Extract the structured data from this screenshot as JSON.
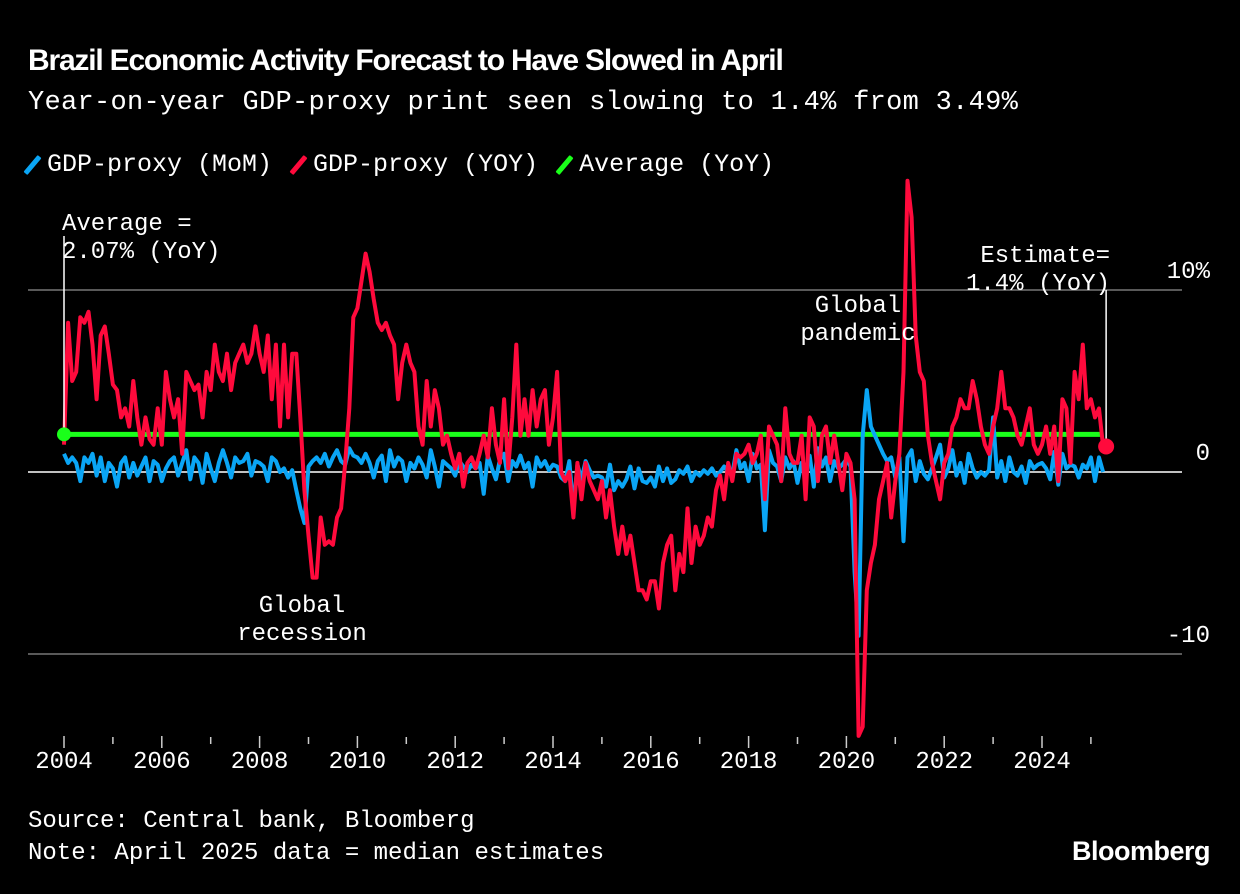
{
  "header": {
    "title": "Brazil Economic Activity Forecast to Have Slowed in April",
    "subtitle": "Year-on-year GDP-proxy print seen slowing to 1.4% from 3.49%"
  },
  "footer": {
    "source": "Source: Central bank, Bloomberg",
    "note": "Note: April 2025 data = median estimates",
    "brand": "Bloomberg"
  },
  "colors": {
    "mom": "#0aa5f5",
    "yoy": "#ff0a3c",
    "average": "#1aff1a",
    "grid": "#777777",
    "zero": "#ffffff"
  },
  "chart_data": {
    "type": "line",
    "title": "Brazil Economic Activity Forecast to Have Slowed in April",
    "subtitle": "Year-on-year GDP-proxy print seen slowing to 1.4% from 3.49%",
    "x_start": "2004-01",
    "x_end": "2025-04",
    "frequency": "monthly",
    "x_ticks": [
      "2004",
      "2006",
      "2008",
      "2010",
      "2012",
      "2014",
      "2016",
      "2018",
      "2020",
      "2022",
      "2024"
    ],
    "y_ticks": [
      {
        "value": 10,
        "label": "10%"
      },
      {
        "value": 0,
        "label": "0"
      },
      {
        "value": -10,
        "label": "-10"
      }
    ],
    "ylim": [
      -15,
      16
    ],
    "grid": true,
    "legend_placement": "top-left",
    "series": [
      {
        "name": "GDP-proxy (MoM)",
        "color": "#0aa5f5",
        "values": [
          1.0,
          0.5,
          0.8,
          0.5,
          -0.5,
          0.8,
          0.5,
          1.0,
          -0.2,
          0.8,
          -0.5,
          0.5,
          0.2,
          -0.8,
          0.5,
          0.8,
          -0.3,
          0.5,
          -0.2,
          0.3,
          0.8,
          -0.5,
          0.6,
          0.4,
          -0.5,
          0.2,
          0.6,
          0.8,
          -0.2,
          0.5,
          1.2,
          -0.4,
          0.8,
          0.5,
          -0.6,
          1.0,
          0.2,
          -0.5,
          0.5,
          1.2,
          0.5,
          -0.3,
          0.8,
          0.5,
          0.6,
          1.0,
          -0.2,
          0.6,
          0.5,
          0.3,
          -0.5,
          0.8,
          0.6,
          0.0,
          0.2,
          -0.3,
          0.1,
          -1.0,
          -2.0,
          -2.8,
          0.3,
          0.6,
          0.8,
          0.5,
          1.0,
          0.3,
          0.8,
          1.2,
          0.6,
          0.4,
          1.3,
          0.9,
          0.8,
          0.5,
          1.0,
          0.5,
          -0.3,
          0.6,
          0.9,
          -0.5,
          1.2,
          0.3,
          0.8,
          0.6,
          -0.5,
          0.5,
          0.2,
          0.8,
          0.4,
          -0.3,
          1.2,
          0.3,
          -0.8,
          0.6,
          0.4,
          0.2,
          -0.2,
          0.6,
          0.3,
          0.0,
          0.4,
          0.2,
          0.5,
          -1.2,
          0.9,
          0.2,
          -0.4,
          0.7,
          1.0,
          -0.5,
          0.6,
          0.3,
          0.9,
          0.2,
          0.5,
          -0.8,
          0.8,
          0.3,
          0.6,
          0.1,
          0.4,
          0.3,
          -0.3,
          -0.5,
          0.6,
          -2.0,
          0.4,
          -0.4,
          0.6,
          0.1,
          -0.3,
          -0.2,
          -0.3,
          -0.8,
          0.4,
          -1.0,
          -0.5,
          -0.8,
          -0.4,
          0.3,
          -0.9,
          0.2,
          -0.5,
          -0.6,
          -0.3,
          -0.8,
          0.3,
          -0.5,
          0.2,
          -0.6,
          -0.4,
          0.1,
          -0.1,
          0.3,
          -0.5,
          0.0,
          -0.2,
          0.1,
          -0.1,
          0.2,
          -0.2,
          0.0,
          0.3,
          0.0,
          -0.1,
          1.2,
          0.2,
          0.5,
          -0.5,
          1.0,
          0.2,
          0.4,
          -3.2,
          1.2,
          0.5,
          0.3,
          -0.5,
          0.8,
          0.2,
          0.6,
          -0.6,
          0.5,
          0.2,
          0.9,
          -0.8,
          1.3,
          0.3,
          0.8,
          -0.5,
          0.6,
          0.2,
          0.4,
          0.7,
          0.3,
          -5.5,
          -9.0,
          2.0,
          4.5,
          2.5,
          2.0,
          1.5,
          1.0,
          0.6,
          0.8,
          -0.3,
          0.8,
          -3.8,
          0.8,
          1.2,
          -0.5,
          0.6,
          -0.1,
          -0.4,
          0.2,
          0.8,
          1.5,
          -0.3,
          0.2,
          1.2,
          -0.2,
          0.5,
          -0.6,
          1.0,
          0.2,
          -0.3,
          0.0,
          -0.2,
          0.1,
          3.0,
          -0.3,
          0.6,
          -0.5,
          0.8,
          0.0,
          -0.2,
          0.3,
          -0.6,
          0.6,
          0.2,
          0.4,
          0.5,
          0.2,
          -0.4,
          1.1,
          -0.7,
          1.0,
          0.2,
          0.4,
          0.3,
          -0.3,
          0.4,
          0.2,
          0.8,
          -0.5,
          0.8,
          0.0
        ]
      },
      {
        "name": "GDP-proxy (YOY)",
        "color": "#ff0a3c",
        "values": [
          1.5,
          8.2,
          5.0,
          5.5,
          8.5,
          8.2,
          8.8,
          7.0,
          4.0,
          7.5,
          8.0,
          6.5,
          4.8,
          4.5,
          3.0,
          3.5,
          2.5,
          5.0,
          3.0,
          1.5,
          3.0,
          1.8,
          1.5,
          3.5,
          1.5,
          5.5,
          4.0,
          3.0,
          4.0,
          1.0,
          5.5,
          5.0,
          4.5,
          4.8,
          3.0,
          5.5,
          4.5,
          7.0,
          5.5,
          5.0,
          6.5,
          4.5,
          6.0,
          6.5,
          7.0,
          6.0,
          6.5,
          8.0,
          6.5,
          5.5,
          7.5,
          4.0,
          7.0,
          2.5,
          7.0,
          3.0,
          6.5,
          6.5,
          3.0,
          -1.0,
          -3.5,
          -5.8,
          -5.8,
          -2.5,
          -4.0,
          -3.8,
          -4.0,
          -2.5,
          -2.0,
          0.5,
          3.5,
          8.5,
          9.0,
          10.5,
          12.0,
          11.0,
          9.5,
          8.2,
          7.8,
          8.2,
          7.5,
          7.0,
          4.0,
          6.0,
          7.0,
          6.0,
          5.5,
          2.5,
          1.5,
          5.0,
          2.5,
          4.5,
          3.5,
          1.5,
          2.0,
          1.0,
          0.2,
          1.0,
          -0.8,
          0.5,
          0.8,
          0.2,
          1.0,
          2.0,
          0.8,
          3.5,
          1.5,
          0.5,
          4.0,
          0.2,
          3.0,
          7.0,
          2.0,
          4.0,
          2.0,
          4.5,
          2.5,
          4.0,
          4.5,
          1.5,
          3.0,
          5.5,
          0.0,
          -0.5,
          0.0,
          -2.5,
          0.5,
          -1.5,
          0.5,
          -0.5,
          -1.0,
          -1.5,
          -0.5,
          -2.5,
          -1.0,
          -3.0,
          -4.5,
          -3.0,
          -4.5,
          -3.5,
          -5.0,
          -6.5,
          -6.5,
          -7.0,
          -6.0,
          -6.0,
          -7.5,
          -5.0,
          -4.0,
          -3.5,
          -6.5,
          -4.5,
          -5.5,
          -2.0,
          -5.0,
          -3.0,
          -4.0,
          -3.5,
          -2.5,
          -3.0,
          -1.0,
          -0.2,
          -1.5,
          0.5,
          -0.5,
          1.0,
          0.8,
          1.0,
          1.5,
          0.5,
          1.0,
          2.0,
          -1.5,
          2.5,
          2.0,
          1.5,
          -0.5,
          3.5,
          1.0,
          0.5,
          0.5,
          2.0,
          -1.5,
          3.0,
          2.5,
          -0.5,
          2.0,
          2.5,
          0.5,
          2.0,
          0.5,
          -1.0,
          1.0,
          0.5,
          -1.5,
          -14.5,
          -14.0,
          -6.5,
          -5.0,
          -4.0,
          -1.5,
          -0.5,
          0.5,
          -2.5,
          -0.5,
          1.0,
          5.5,
          16.0,
          14.0,
          7.5,
          5.5,
          5.0,
          2.0,
          0.5,
          -0.5,
          -1.5,
          0.5,
          1.0,
          2.5,
          3.0,
          4.0,
          3.5,
          3.5,
          5.0,
          4.0,
          2.5,
          1.5,
          1.0,
          2.5,
          3.5,
          5.5,
          3.5,
          3.5,
          3.0,
          2.0,
          1.5,
          2.5,
          3.5,
          1.5,
          1.0,
          1.5,
          2.5,
          1.0,
          2.5,
          -0.5,
          4.0,
          3.5,
          0.5,
          5.5,
          4.0,
          7.0,
          3.5,
          4.0,
          3.0,
          3.49,
          1.4
        ]
      },
      {
        "name": "Average (YoY)",
        "color": "#1aff1a",
        "value": 2.07
      }
    ],
    "annotations": [
      {
        "text": [
          "Average =",
          "2.07% (YoY)"
        ],
        "value": 2.07
      },
      {
        "text": [
          "Estimate=",
          "1.4% (YoY)"
        ],
        "value": 1.4
      },
      {
        "text": [
          "Global",
          "pandemic"
        ]
      },
      {
        "text": [
          "Global",
          "recession"
        ]
      }
    ]
  }
}
